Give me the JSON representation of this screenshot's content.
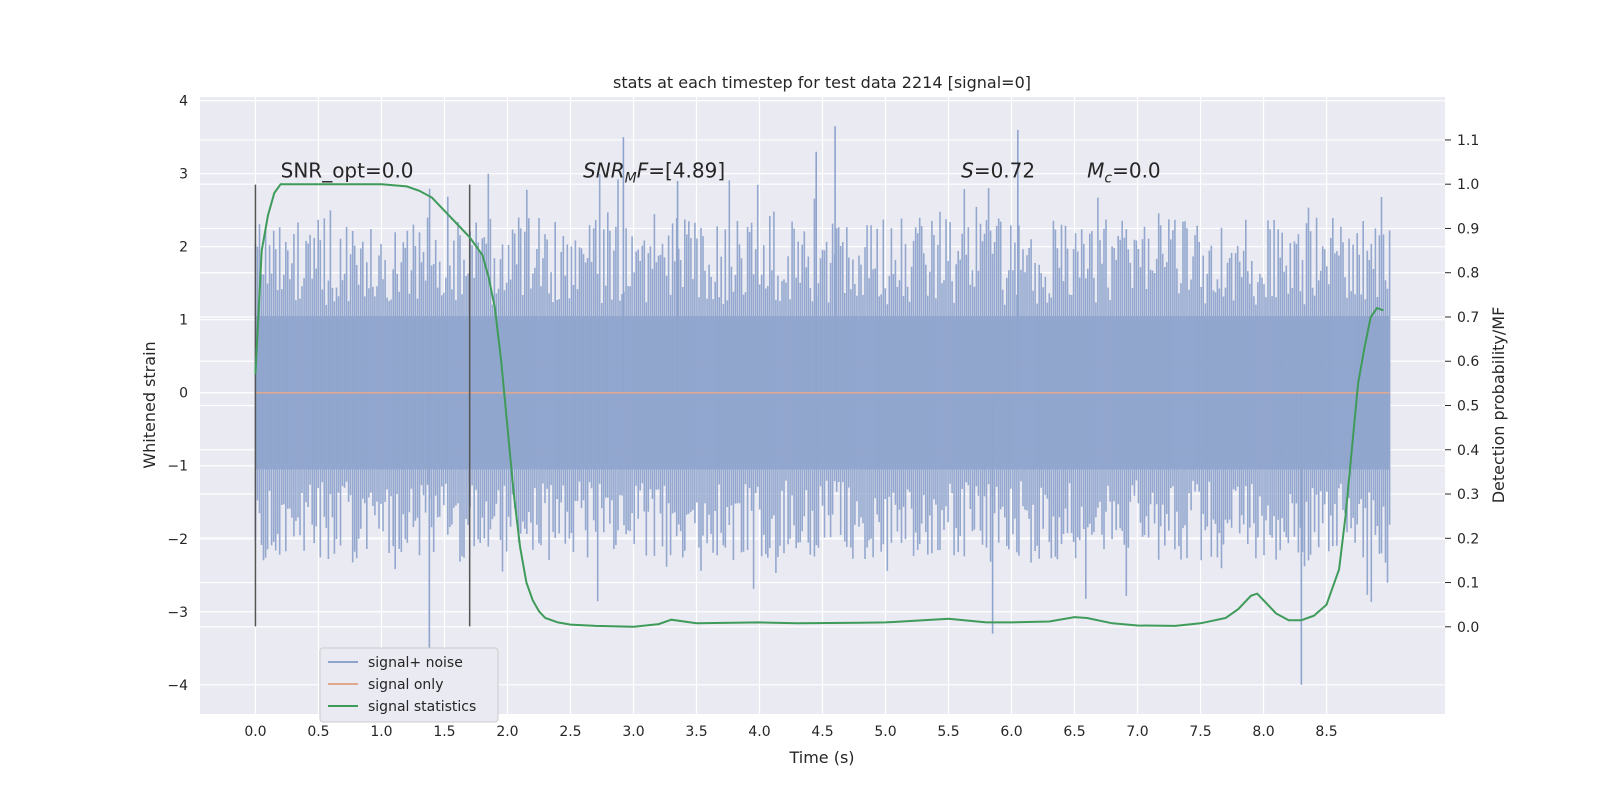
{
  "chart_data": {
    "type": "line",
    "title": "stats at each timestep for test data 2214 [signal=0]",
    "xlabel": "Time (s)",
    "ylabel": "Whitened strain",
    "y2label": "Detection probability/MF",
    "xlim": [
      -0.44,
      9.44
    ],
    "ylim": [
      -4.4,
      4.05
    ],
    "y2lim": [
      -0.197,
      1.197
    ],
    "xticks": [
      0.0,
      0.5,
      1.0,
      1.5,
      2.0,
      2.5,
      3.0,
      3.5,
      4.0,
      4.5,
      5.0,
      5.5,
      6.0,
      6.5,
      7.0,
      7.5,
      8.0,
      8.5
    ],
    "xtick_labels": [
      "0.0",
      "0.5",
      "1.0",
      "1.5",
      "2.0",
      "2.5",
      "3.0",
      "3.5",
      "4.0",
      "4.5",
      "5.0",
      "5.5",
      "6.0",
      "6.5",
      "7.0",
      "7.5",
      "8.0",
      "8.5"
    ],
    "yticks": [
      -4,
      -3,
      -2,
      -1,
      0,
      1,
      2,
      3,
      4
    ],
    "ytick_labels": [
      "−4",
      "−3",
      "−2",
      "−1",
      "0",
      "1",
      "2",
      "3",
      "4"
    ],
    "y2ticks": [
      0.0,
      0.1,
      0.2,
      0.3,
      0.4,
      0.5,
      0.6,
      0.7,
      0.8,
      0.9,
      1.0,
      1.1
    ],
    "y2tick_labels": [
      "0.0",
      "0.1",
      "0.2",
      "0.3",
      "0.4",
      "0.5",
      "0.6",
      "0.7",
      "0.8",
      "0.9",
      "1.0",
      "1.1"
    ],
    "grid": true,
    "legend": {
      "position": "lower-left",
      "entries": [
        {
          "label": "signal+ noise",
          "color": "#8fa4cc"
        },
        {
          "label": "signal only",
          "color": "#e0a98e"
        },
        {
          "label": "signal statistics",
          "color": "#3f9b5a"
        }
      ]
    },
    "annotations": [
      {
        "label": "SNR_opt=0.0",
        "x": 0.2,
        "y": 2.95
      },
      {
        "label_html": "SNR<tspan font-size='13' dy='4'>M</tspan><tspan dy='-4'>F=[4.89]</tspan>",
        "label": "SNR_MF=[4.89]",
        "x": 2.6,
        "y": 2.95,
        "italic_prefix": true
      },
      {
        "label": "S=0.72",
        "x": 5.6,
        "y": 2.95
      },
      {
        "label": "M_c=0.0",
        "x": 6.6,
        "y": 2.95
      }
    ],
    "vertical_markers": [
      {
        "x": 0.0,
        "y_range": [
          -3.2,
          2.85
        ]
      },
      {
        "x": 1.7,
        "y_range": [
          -3.2,
          2.85
        ]
      }
    ],
    "noise_series": {
      "name": "signal+ noise",
      "x_range": [
        0.0,
        9.0
      ],
      "n_points": 560,
      "color": "#8fa4cc",
      "peaks": [
        {
          "x": 2.92,
          "y": 3.5
        },
        {
          "x": 3.35,
          "y": 2.9
        },
        {
          "x": 4.45,
          "y": 3.3
        },
        {
          "x": 4.6,
          "y": 3.65
        },
        {
          "x": 6.05,
          "y": 3.6
        },
        {
          "x": 1.38,
          "y": -3.55
        },
        {
          "x": 8.3,
          "y": -4.0
        },
        {
          "x": 5.85,
          "y": -3.3
        }
      ]
    },
    "signal_only": {
      "name": "signal only",
      "x": [
        0.0,
        9.0
      ],
      "y": [
        0.0,
        0.0
      ],
      "color": "#e0a98e"
    },
    "series": [
      {
        "name": "signal statistics",
        "axis": "right",
        "color": "#3f9b5a",
        "x": [
          0.0,
          0.05,
          0.1,
          0.15,
          0.2,
          0.3,
          0.5,
          0.8,
          1.0,
          1.2,
          1.3,
          1.4,
          1.5,
          1.6,
          1.7,
          1.8,
          1.85,
          1.9,
          1.95,
          2.0,
          2.05,
          2.1,
          2.15,
          2.2,
          2.25,
          2.3,
          2.4,
          2.5,
          2.7,
          3.0,
          3.2,
          3.3,
          3.5,
          4.0,
          4.3,
          4.8,
          5.0,
          5.3,
          5.5,
          5.8,
          6.0,
          6.3,
          6.5,
          6.6,
          6.8,
          7.0,
          7.3,
          7.5,
          7.7,
          7.8,
          7.9,
          7.95,
          8.0,
          8.1,
          8.2,
          8.3,
          8.4,
          8.5,
          8.6,
          8.65,
          8.7,
          8.75,
          8.8,
          8.85,
          8.9,
          8.95
        ],
        "y": [
          0.57,
          0.85,
          0.93,
          0.98,
          1.0,
          1.0,
          1.0,
          1.0,
          1.0,
          0.995,
          0.985,
          0.97,
          0.94,
          0.91,
          0.88,
          0.84,
          0.79,
          0.72,
          0.6,
          0.45,
          0.3,
          0.18,
          0.1,
          0.06,
          0.035,
          0.02,
          0.01,
          0.005,
          0.002,
          0.0,
          0.006,
          0.016,
          0.008,
          0.01,
          0.008,
          0.009,
          0.01,
          0.015,
          0.018,
          0.01,
          0.01,
          0.012,
          0.022,
          0.02,
          0.008,
          0.003,
          0.002,
          0.008,
          0.02,
          0.04,
          0.07,
          0.075,
          0.06,
          0.03,
          0.015,
          0.015,
          0.025,
          0.05,
          0.13,
          0.25,
          0.4,
          0.55,
          0.63,
          0.7,
          0.72,
          0.715
        ]
      }
    ]
  }
}
